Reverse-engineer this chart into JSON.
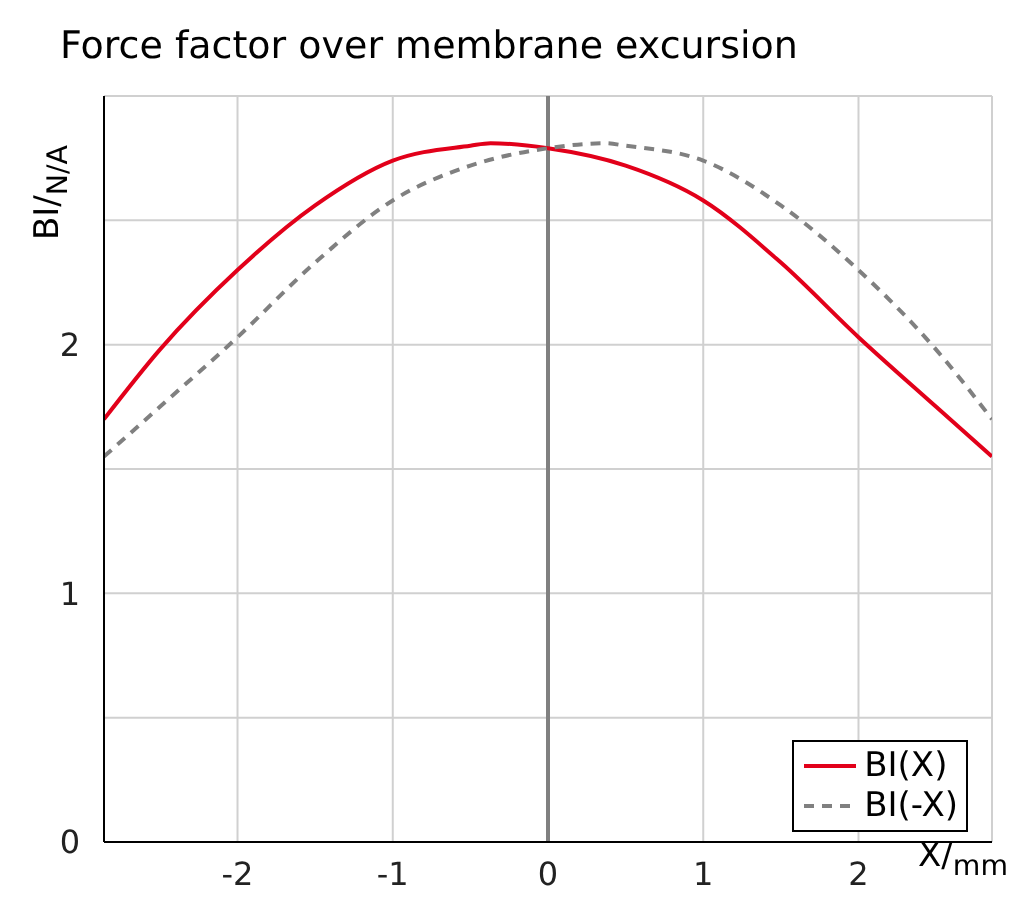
{
  "chart_data": {
    "type": "line",
    "title": "Force factor over membrane excursion",
    "xlabel": "X/$_{mm}$",
    "ylabel": "BI/$_{N/A}$",
    "xlim": [
      -2.86,
      2.86
    ],
    "xticks": [
      -2,
      -1,
      0,
      1,
      2
    ],
    "ylim": [
      0,
      3
    ],
    "yticks": [
      0,
      {
        "value": 0.5,
        "label": null
      },
      1,
      {
        "value": 1.5,
        "label": null
      },
      2,
      {
        "value": 2.5,
        "label": null
      },
      {
        "value": 3,
        "label": null
      }
    ],
    "grid": true,
    "legend": "bottom right",
    "marker": "none",
    "ref_lines": [
      {
        "axis": "x",
        "value": 0,
        "label": null,
        "color": "#808080"
      }
    ],
    "series": [
      {
        "name": "BI(X)",
        "color": "#e2001a",
        "line_style": "solid",
        "x": [
          -2.86,
          -2.5,
          -2,
          -1.5,
          -1,
          -0.5,
          -0.37,
          0,
          0.5,
          1,
          1.5,
          2,
          2.5,
          2.86
        ],
        "values": [
          1.7,
          1.98,
          2.3,
          2.56,
          2.74,
          2.8,
          2.81,
          2.79,
          2.72,
          2.58,
          2.33,
          2.03,
          1.75,
          1.55
        ]
      },
      {
        "name": "BI(-X)",
        "color": "#808080",
        "line_style": "dashed",
        "x": [
          -2.86,
          -2.5,
          -2,
          -1.5,
          -1,
          -0.5,
          0,
          0.37,
          0.5,
          1,
          1.5,
          2,
          2.5,
          2.86
        ],
        "values": [
          1.55,
          1.75,
          2.03,
          2.33,
          2.58,
          2.72,
          2.79,
          2.81,
          2.8,
          2.74,
          2.56,
          2.3,
          1.98,
          1.7
        ]
      }
    ]
  }
}
